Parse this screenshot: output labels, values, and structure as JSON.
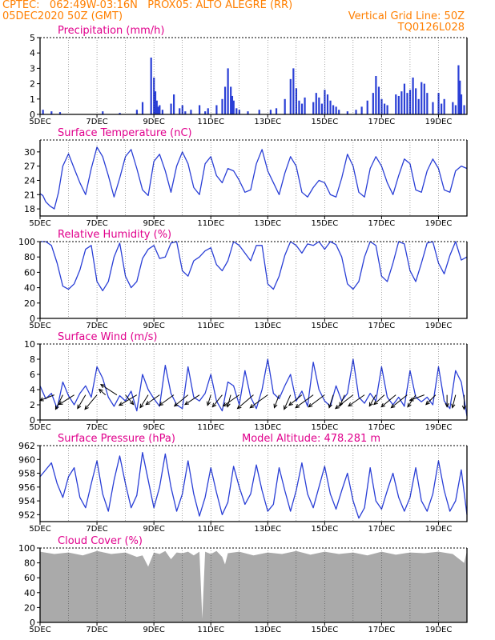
{
  "header": {
    "line1": "CPTEC:   062:49W-03:16N   PROX05: ALTO ALEGRE (RR)",
    "line2_left": "05DEC2020 50Z (GMT)",
    "line2_right": "Vertical Grid Line: 50Z",
    "line3_right": "TQ0126L028"
  },
  "colors": {
    "header": "#ff7f00",
    "panel_title": "#e0008c",
    "series": "#2a3fd6",
    "cloud": "#aaaaaa",
    "axis": "#000000",
    "grid": "#000000"
  },
  "x_tick_labels": [
    "5DEC",
    "7DEC",
    "9DEC",
    "11DEC",
    "13DEC",
    "15DEC",
    "17DEC",
    "19DEC"
  ],
  "x_tick_days": [
    5,
    7,
    9,
    11,
    13,
    15,
    17,
    19
  ],
  "x_axis": {
    "start_day": 5.0,
    "end_day": 20.0
  },
  "chart_data": [
    {
      "id": "precip",
      "type": "bar",
      "title": "Precipitation (mm/h)",
      "ylim": [
        0,
        5
      ],
      "yticks": [
        0,
        1,
        2,
        3,
        4,
        5
      ],
      "x": [
        5.1,
        5.4,
        5.7,
        7.2,
        7.8,
        8.4,
        8.6,
        8.9,
        9.0,
        9.05,
        9.1,
        9.15,
        9.2,
        9.3,
        9.6,
        9.7,
        9.9,
        10.0,
        10.1,
        10.3,
        10.6,
        10.8,
        10.9,
        11.2,
        11.4,
        11.5,
        11.6,
        11.7,
        11.75,
        11.8,
        11.9,
        12.0,
        12.3,
        12.7,
        13.1,
        13.3,
        13.6,
        13.8,
        13.9,
        14.0,
        14.1,
        14.2,
        14.3,
        14.6,
        14.7,
        14.8,
        14.9,
        15.0,
        15.1,
        15.2,
        15.3,
        15.4,
        15.5,
        15.8,
        16.1,
        16.3,
        16.5,
        16.7,
        16.8,
        16.9,
        17.0,
        17.1,
        17.2,
        17.5,
        17.6,
        17.7,
        17.8,
        17.9,
        18.0,
        18.1,
        18.2,
        18.3,
        18.4,
        18.5,
        18.6,
        18.8,
        19.0,
        19.1,
        19.2,
        19.5,
        19.6,
        19.7,
        19.75,
        19.8,
        19.9
      ],
      "values": [
        0.3,
        0.2,
        0.15,
        0.2,
        0.1,
        0.3,
        0.8,
        3.7,
        2.4,
        1.5,
        0.9,
        0.5,
        0.6,
        0.3,
        0.7,
        1.3,
        0.4,
        0.6,
        0.2,
        0.3,
        0.6,
        0.2,
        0.4,
        0.6,
        1.0,
        1.8,
        3.0,
        1.8,
        1.2,
        0.9,
        0.4,
        0.3,
        0.2,
        0.3,
        0.3,
        0.4,
        1.0,
        2.3,
        3.0,
        1.7,
        0.9,
        0.7,
        1.1,
        0.8,
        1.4,
        1.1,
        0.7,
        1.6,
        1.3,
        0.9,
        0.6,
        0.5,
        0.3,
        0.2,
        0.3,
        0.5,
        0.9,
        1.4,
        2.5,
        1.8,
        1.0,
        0.7,
        0.6,
        1.3,
        1.2,
        1.5,
        2.0,
        1.4,
        1.6,
        2.4,
        1.7,
        1.0,
        2.1,
        2.0,
        1.4,
        0.8,
        1.4,
        0.7,
        1.0,
        0.8,
        0.6,
        3.2,
        2.2,
        1.3,
        0.6
      ]
    },
    {
      "id": "temp",
      "type": "line",
      "title": "Surface Temperature (nC)",
      "ylim": [
        16.5,
        32.5
      ],
      "yticks": [
        18,
        21,
        24,
        27,
        30
      ],
      "x": [
        5.0,
        5.1,
        5.2,
        5.35,
        5.5,
        5.65,
        5.8,
        6.0,
        6.2,
        6.4,
        6.6,
        6.8,
        7.0,
        7.2,
        7.4,
        7.6,
        7.8,
        8.0,
        8.2,
        8.4,
        8.6,
        8.8,
        9.0,
        9.2,
        9.4,
        9.6,
        9.8,
        10.0,
        10.2,
        10.4,
        10.6,
        10.8,
        11.0,
        11.2,
        11.4,
        11.6,
        11.8,
        12.0,
        12.2,
        12.4,
        12.6,
        12.8,
        13.0,
        13.2,
        13.4,
        13.6,
        13.8,
        14.0,
        14.2,
        14.4,
        14.6,
        14.8,
        15.0,
        15.2,
        15.4,
        15.6,
        15.8,
        16.0,
        16.2,
        16.4,
        16.6,
        16.8,
        17.0,
        17.2,
        17.4,
        17.6,
        17.8,
        18.0,
        18.2,
        18.4,
        18.6,
        18.8,
        19.0,
        19.2,
        19.4,
        19.6,
        19.8,
        20.0
      ],
      "values": [
        21.2,
        20.8,
        19.5,
        18.6,
        18.0,
        21.5,
        27.0,
        29.6,
        26.5,
        23.5,
        21.0,
        26.5,
        31.0,
        29.0,
        25.0,
        20.5,
        24.5,
        29.0,
        30.5,
        26.5,
        22.0,
        20.8,
        28.0,
        29.5,
        26.0,
        21.5,
        27.0,
        30.0,
        27.5,
        22.5,
        21.0,
        27.5,
        29.0,
        25.0,
        23.5,
        26.5,
        26.0,
        24.0,
        21.5,
        22.0,
        27.5,
        30.5,
        26.0,
        23.5,
        21.0,
        25.5,
        29.0,
        27.0,
        21.5,
        20.5,
        22.5,
        24.0,
        23.5,
        21.0,
        20.5,
        24.5,
        29.5,
        27.0,
        21.5,
        20.5,
        26.5,
        29.0,
        27.0,
        23.5,
        21.0,
        25.0,
        28.5,
        27.5,
        22.0,
        21.5,
        26.0,
        28.5,
        26.5,
        22.0,
        21.5,
        26.0,
        27.0,
        26.5
      ]
    },
    {
      "id": "rh",
      "type": "line",
      "title": "Relative Humidity (%)",
      "ylim": [
        0,
        100
      ],
      "yticks": [
        0,
        20,
        40,
        60,
        80,
        100
      ],
      "x": [
        5.0,
        5.2,
        5.4,
        5.6,
        5.8,
        6.0,
        6.2,
        6.4,
        6.6,
        6.8,
        7.0,
        7.2,
        7.4,
        7.6,
        7.8,
        8.0,
        8.2,
        8.4,
        8.6,
        8.8,
        9.0,
        9.2,
        9.4,
        9.6,
        9.8,
        10.0,
        10.2,
        10.4,
        10.6,
        10.8,
        11.0,
        11.2,
        11.4,
        11.6,
        11.8,
        12.0,
        12.2,
        12.4,
        12.6,
        12.8,
        13.0,
        13.2,
        13.4,
        13.6,
        13.8,
        14.0,
        14.2,
        14.4,
        14.6,
        14.8,
        15.0,
        15.2,
        15.4,
        15.6,
        15.8,
        16.0,
        16.2,
        16.4,
        16.6,
        16.8,
        17.0,
        17.2,
        17.4,
        17.6,
        17.8,
        18.0,
        18.2,
        18.4,
        18.6,
        18.8,
        19.0,
        19.2,
        19.4,
        19.6,
        19.8,
        20.0
      ],
      "values": [
        100,
        100,
        95,
        72,
        42,
        38,
        45,
        63,
        90,
        95,
        48,
        36,
        48,
        80,
        98,
        55,
        40,
        48,
        78,
        90,
        95,
        78,
        80,
        98,
        100,
        62,
        55,
        75,
        80,
        88,
        92,
        70,
        62,
        75,
        100,
        95,
        85,
        75,
        95,
        95,
        45,
        38,
        55,
        82,
        100,
        95,
        85,
        97,
        95,
        100,
        90,
        100,
        96,
        80,
        45,
        38,
        48,
        80,
        100,
        95,
        55,
        48,
        72,
        100,
        97,
        62,
        48,
        72,
        98,
        100,
        72,
        58,
        82,
        100,
        76,
        80
      ]
    },
    {
      "id": "wind",
      "type": "line",
      "title": "Surface Wind (m/s)",
      "ylim": [
        0,
        10
      ],
      "yticks": [
        0,
        2,
        4,
        6,
        8,
        10
      ],
      "x": [
        5.0,
        5.2,
        5.4,
        5.6,
        5.8,
        6.0,
        6.2,
        6.4,
        6.6,
        6.8,
        7.0,
        7.2,
        7.4,
        7.6,
        7.8,
        8.0,
        8.2,
        8.4,
        8.6,
        8.8,
        9.0,
        9.2,
        9.4,
        9.6,
        9.8,
        10.0,
        10.2,
        10.4,
        10.6,
        10.8,
        11.0,
        11.2,
        11.4,
        11.6,
        11.8,
        12.0,
        12.2,
        12.4,
        12.6,
        12.8,
        13.0,
        13.2,
        13.4,
        13.6,
        13.8,
        14.0,
        14.2,
        14.4,
        14.6,
        14.8,
        15.0,
        15.2,
        15.4,
        15.6,
        15.8,
        16.0,
        16.2,
        16.4,
        16.6,
        16.8,
        17.0,
        17.2,
        17.4,
        17.6,
        17.8,
        18.0,
        18.2,
        18.4,
        18.6,
        18.8,
        19.0,
        19.2,
        19.4,
        19.6,
        19.8,
        20.0
      ],
      "values": [
        4.5,
        2.8,
        3.5,
        1.5,
        5.0,
        3.2,
        2.0,
        3.5,
        4.5,
        3.0,
        7.0,
        5.5,
        3.0,
        1.8,
        3.2,
        2.5,
        3.8,
        1.2,
        6.0,
        4.0,
        2.8,
        1.8,
        7.2,
        3.5,
        2.0,
        1.5,
        7.0,
        3.0,
        2.5,
        3.5,
        6.0,
        2.5,
        1.2,
        5.0,
        4.5,
        2.0,
        6.5,
        3.0,
        1.5,
        4.0,
        8.0,
        3.5,
        2.8,
        4.5,
        6.0,
        2.5,
        3.8,
        1.8,
        7.6,
        4.0,
        2.5,
        1.8,
        4.5,
        2.5,
        3.5,
        8.0,
        3.0,
        2.2,
        3.5,
        2.5,
        7.0,
        3.0,
        2.0,
        3.0,
        1.8,
        6.5,
        3.0,
        2.4,
        3.0,
        2.0,
        7.0,
        2.5,
        1.5,
        6.5,
        5.0,
        0.5
      ],
      "arrows": [
        {
          "day": 5.5,
          "u": -1.8,
          "v": -0.7
        },
        {
          "day": 5.8,
          "u": -0.9,
          "v": -1.8
        },
        {
          "day": 6.2,
          "u": -1.9,
          "v": -1.2
        },
        {
          "day": 6.6,
          "u": -1.0,
          "v": -1.7
        },
        {
          "day": 7.0,
          "u": -1.5,
          "v": -1.8
        },
        {
          "day": 7.3,
          "u": -0.8,
          "v": 0.7
        },
        {
          "day": 7.7,
          "u": -2.0,
          "v": 1.3
        },
        {
          "day": 8.0,
          "u": 1.0,
          "v": -1.2
        },
        {
          "day": 8.4,
          "u": -2.2,
          "v": -1.3
        },
        {
          "day": 8.8,
          "u": -1.0,
          "v": -1.6
        },
        {
          "day": 9.2,
          "u": -1.7,
          "v": -1.2
        },
        {
          "day": 9.7,
          "u": -1.8,
          "v": -1.3
        },
        {
          "day": 10.2,
          "u": -1.7,
          "v": -1.4
        },
        {
          "day": 10.6,
          "u": -1.8,
          "v": -1.2
        },
        {
          "day": 11.0,
          "u": -0.4,
          "v": -1.3
        },
        {
          "day": 11.4,
          "u": -1.2,
          "v": -1.5
        },
        {
          "day": 11.7,
          "u": -0.4,
          "v": -1.5
        },
        {
          "day": 12.0,
          "u": -2.0,
          "v": -1.4
        },
        {
          "day": 12.5,
          "u": -2.0,
          "v": -1.7
        },
        {
          "day": 13.0,
          "u": -2.2,
          "v": -1.6
        },
        {
          "day": 13.4,
          "u": -0.6,
          "v": -1.6
        },
        {
          "day": 13.8,
          "u": -0.8,
          "v": -1.8
        },
        {
          "day": 14.2,
          "u": -1.6,
          "v": -1.3
        },
        {
          "day": 14.6,
          "u": -2.2,
          "v": -1.6
        },
        {
          "day": 15.0,
          "u": -2.0,
          "v": -1.5
        },
        {
          "day": 15.3,
          "u": -0.5,
          "v": -1.6
        },
        {
          "day": 15.7,
          "u": -0.6,
          "v": -1.4
        },
        {
          "day": 16.0,
          "u": -2.2,
          "v": -1.7
        },
        {
          "day": 16.4,
          "u": -2.0,
          "v": -1.4
        },
        {
          "day": 16.8,
          "u": -0.8,
          "v": -1.4
        },
        {
          "day": 17.1,
          "u": -1.3,
          "v": -1.2
        },
        {
          "day": 17.5,
          "u": -1.8,
          "v": -1.5
        },
        {
          "day": 17.9,
          "u": -2.0,
          "v": -1.6
        },
        {
          "day": 18.2,
          "u": -1.0,
          "v": -1.5
        },
        {
          "day": 18.5,
          "u": -1.8,
          "v": -0.7
        },
        {
          "day": 18.9,
          "u": -1.2,
          "v": -1.2
        },
        {
          "day": 19.3,
          "u": 0.0,
          "v": -1.5
        },
        {
          "day": 19.6,
          "u": -0.4,
          "v": -1.6
        },
        {
          "day": 19.9,
          "u": 0.0,
          "v": -1.8
        }
      ]
    },
    {
      "id": "pres",
      "type": "line",
      "title": "Surface Pressure (hPa)",
      "subtitle": "Model Altitude: 478.281  m",
      "ylim": [
        951,
        962
      ],
      "yticks": [
        952,
        954,
        956,
        958,
        960,
        962
      ],
      "x": [
        5.0,
        5.2,
        5.4,
        5.6,
        5.8,
        6.0,
        6.2,
        6.4,
        6.6,
        6.8,
        7.0,
        7.2,
        7.4,
        7.6,
        7.8,
        8.0,
        8.2,
        8.4,
        8.6,
        8.8,
        9.0,
        9.2,
        9.4,
        9.6,
        9.8,
        10.0,
        10.2,
        10.4,
        10.6,
        10.8,
        11.0,
        11.2,
        11.4,
        11.6,
        11.8,
        12.0,
        12.2,
        12.4,
        12.6,
        12.8,
        13.0,
        13.2,
        13.4,
        13.6,
        13.8,
        14.0,
        14.2,
        14.4,
        14.6,
        14.8,
        15.0,
        15.2,
        15.4,
        15.6,
        15.8,
        16.0,
        16.2,
        16.4,
        16.6,
        16.8,
        17.0,
        17.2,
        17.4,
        17.6,
        17.8,
        18.0,
        18.2,
        18.4,
        18.6,
        18.8,
        19.0,
        19.2,
        19.4,
        19.6,
        19.8,
        20.0
      ],
      "values": [
        957.5,
        958.5,
        959.5,
        956.5,
        954.5,
        957.5,
        958.8,
        954.5,
        953.0,
        956.5,
        959.8,
        955.0,
        952.5,
        957.0,
        960.5,
        956.5,
        953.0,
        954.8,
        961.0,
        957.0,
        953.0,
        956.0,
        960.8,
        956.0,
        952.5,
        955.0,
        959.8,
        955.0,
        951.8,
        954.5,
        958.8,
        955.2,
        952.0,
        953.8,
        959.0,
        956.0,
        953.5,
        955.0,
        959.2,
        955.5,
        952.5,
        953.5,
        958.8,
        955.5,
        952.5,
        955.5,
        959.5,
        955.0,
        953.0,
        956.0,
        959.0,
        955.0,
        952.8,
        955.5,
        958.0,
        954.0,
        951.5,
        953.0,
        958.8,
        954.0,
        952.8,
        955.5,
        958.0,
        954.5,
        952.5,
        954.5,
        958.8,
        954.0,
        952.5,
        955.0,
        959.8,
        955.5,
        952.5,
        954.0,
        958.5,
        952.0
      ]
    },
    {
      "id": "cloud",
      "type": "area",
      "title": "Cloud Cover (%)",
      "ylim": [
        0,
        100
      ],
      "yticks": [
        0,
        20,
        40,
        60,
        80,
        100
      ],
      "x": [
        5.0,
        5.5,
        6.0,
        6.5,
        7.0,
        7.5,
        8.0,
        8.4,
        8.6,
        8.8,
        9.0,
        9.2,
        9.4,
        9.6,
        9.8,
        10.0,
        10.2,
        10.4,
        10.6,
        10.7,
        10.8,
        11.0,
        11.2,
        11.4,
        11.5,
        11.6,
        12.0,
        12.5,
        13.0,
        13.5,
        14.0,
        14.5,
        15.0,
        15.5,
        16.0,
        16.5,
        17.0,
        17.5,
        18.0,
        18.5,
        19.0,
        19.5,
        19.9,
        20.0
      ],
      "values": [
        95,
        92,
        94,
        90,
        96,
        92,
        94,
        88,
        90,
        75,
        94,
        92,
        96,
        85,
        94,
        93,
        95,
        90,
        95,
        5,
        95,
        92,
        96,
        88,
        78,
        93,
        95,
        90,
        94,
        92,
        96,
        91,
        95,
        92,
        94,
        90,
        95,
        91,
        94,
        93,
        95,
        92,
        80,
        96
      ]
    }
  ]
}
